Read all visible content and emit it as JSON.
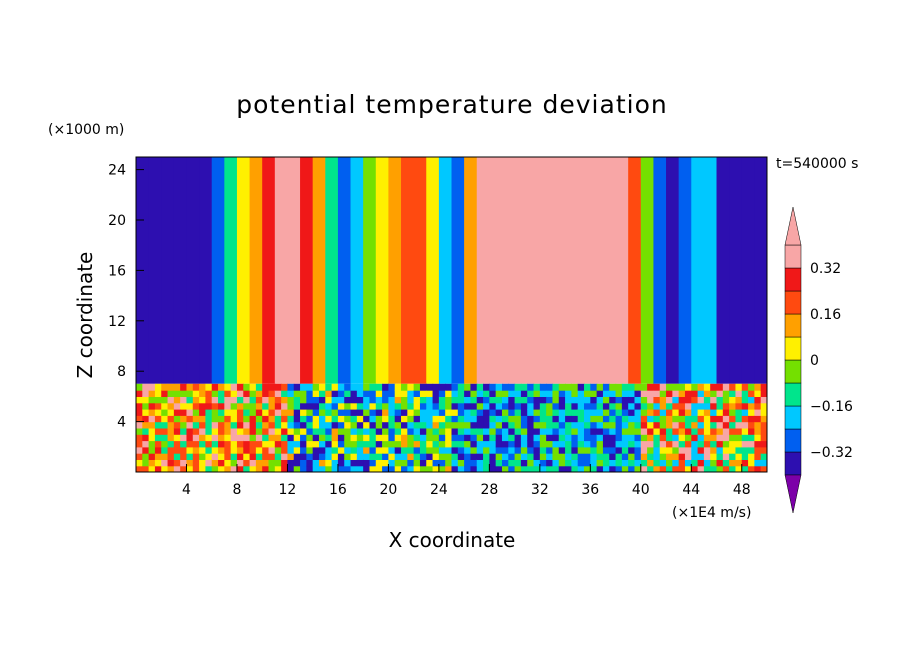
{
  "chart_data": {
    "type": "heatmap",
    "title": "potential temperature deviation",
    "xlabel": "X coordinate",
    "ylabel": "Z coordinate",
    "x_unit": "(×1E4 m/s)",
    "y_unit": "(×1000 m)",
    "time_label": "t=540000 s",
    "xlim": [
      0,
      50
    ],
    "ylim": [
      0,
      25
    ],
    "x_ticks": [
      4,
      8,
      12,
      16,
      20,
      24,
      28,
      32,
      36,
      40,
      44,
      48
    ],
    "y_ticks": [
      4,
      8,
      12,
      16,
      20,
      24
    ],
    "colorbar": {
      "levels": [
        -0.4,
        -0.32,
        -0.24,
        -0.16,
        -0.08,
        0,
        0.08,
        0.16,
        0.24,
        0.32,
        0.4
      ],
      "labels": [
        "-0.32",
        "-0.16",
        "0",
        "0.16",
        "0.32"
      ],
      "label_values": [
        -0.32,
        -0.16,
        0,
        0.16,
        0.32
      ],
      "colors": [
        "#7c00a8",
        "#2d0fb0",
        "#005ff0",
        "#00c8ff",
        "#00e58c",
        "#74e000",
        "#fff000",
        "#ffa000",
        "#ff4a10",
        "#f01818",
        "#f8a6a6",
        "#f8a6a6"
      ],
      "extend": "both"
    },
    "upper_layer": {
      "boundary_z": 7,
      "columns": [
        {
          "x": 0.5,
          "v": -0.4
        },
        {
          "x": 1.5,
          "v": -0.38
        },
        {
          "x": 2.5,
          "v": -0.36
        },
        {
          "x": 3.5,
          "v": -0.33
        },
        {
          "x": 4.5,
          "v": -0.36
        },
        {
          "x": 5.5,
          "v": -0.34
        },
        {
          "x": 6.5,
          "v": -0.25
        },
        {
          "x": 7.5,
          "v": -0.12
        },
        {
          "x": 8.5,
          "v": 0.02
        },
        {
          "x": 9.5,
          "v": 0.14
        },
        {
          "x": 10.5,
          "v": 0.26
        },
        {
          "x": 11.5,
          "v": 0.36
        },
        {
          "x": 12.5,
          "v": 0.38
        },
        {
          "x": 13.5,
          "v": 0.3
        },
        {
          "x": 14.5,
          "v": 0.12
        },
        {
          "x": 15.5,
          "v": -0.12
        },
        {
          "x": 16.5,
          "v": -0.3
        },
        {
          "x": 17.5,
          "v": -0.2
        },
        {
          "x": 18.5,
          "v": -0.04
        },
        {
          "x": 19.5,
          "v": 0.06
        },
        {
          "x": 20.5,
          "v": 0.14
        },
        {
          "x": 21.5,
          "v": 0.2
        },
        {
          "x": 22.5,
          "v": 0.16
        },
        {
          "x": 23.5,
          "v": 0.04
        },
        {
          "x": 24.5,
          "v": -0.18
        },
        {
          "x": 25.5,
          "v": -0.3
        },
        {
          "x": 26.5,
          "v": 0.08
        },
        {
          "x": 27.5,
          "v": 0.42
        },
        {
          "x": 28.5,
          "v": 0.42
        },
        {
          "x": 29.5,
          "v": 0.42
        },
        {
          "x": 30.5,
          "v": 0.42
        },
        {
          "x": 31.5,
          "v": 0.42
        },
        {
          "x": 32.5,
          "v": 0.42
        },
        {
          "x": 33.5,
          "v": 0.42
        },
        {
          "x": 34.5,
          "v": 0.42
        },
        {
          "x": 35.5,
          "v": 0.42
        },
        {
          "x": 36.5,
          "v": 0.42
        },
        {
          "x": 37.5,
          "v": 0.42
        },
        {
          "x": 38.5,
          "v": 0.42
        },
        {
          "x": 39.5,
          "v": 0.2
        },
        {
          "x": 40.5,
          "v": -0.06
        },
        {
          "x": 41.5,
          "v": -0.28
        },
        {
          "x": 42.5,
          "v": -0.36
        },
        {
          "x": 43.5,
          "v": -0.3
        },
        {
          "x": 44.5,
          "v": -0.2
        },
        {
          "x": 45.5,
          "v": -0.22
        },
        {
          "x": 46.5,
          "v": -0.34
        },
        {
          "x": 47.5,
          "v": -0.4
        },
        {
          "x": 48.5,
          "v": -0.4
        },
        {
          "x": 49.5,
          "v": -0.4
        }
      ],
      "warm_patch": {
        "x": [
          30,
          34.5
        ],
        "z": [
          7.5,
          12
        ],
        "v": 0.36
      }
    },
    "lower_layer": {
      "z_range": [
        0,
        7
      ],
      "description_regions": [
        {
          "x": [
            0,
            12
          ],
          "v": [
            -0.16,
            0.4
          ]
        },
        {
          "x": [
            12,
            26
          ],
          "v": [
            -0.4,
            0.1
          ]
        },
        {
          "x": [
            26,
            40
          ],
          "v": [
            -0.4,
            0
          ]
        },
        {
          "x": [
            40,
            50
          ],
          "v": [
            -0.2,
            0.4
          ]
        }
      ]
    }
  }
}
